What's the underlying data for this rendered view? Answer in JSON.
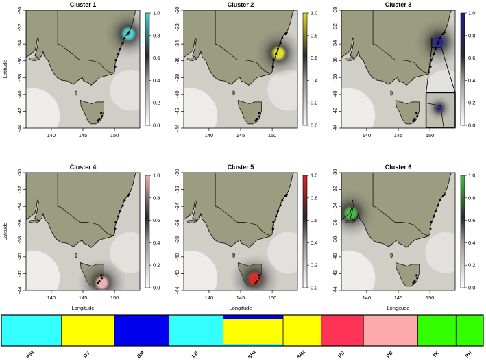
{
  "chart_data": {
    "type": "heatmap",
    "xlabel": "Longitude",
    "ylabel": "Latitude",
    "xlim": [
      136,
      154
    ],
    "ylim": [
      -44,
      -30
    ],
    "xticks": [
      140,
      145,
      150
    ],
    "yticks": [
      -30,
      -32,
      -34,
      -36,
      -38,
      -40,
      -42,
      -44
    ],
    "colorbar_ticks": [
      0.0,
      0.2,
      0.4,
      0.6,
      0.8,
      1.0
    ],
    "colorbar_range": [
      0,
      1
    ],
    "panels": [
      {
        "title": "Cluster 1",
        "color": "#3fd0d0",
        "peak": {
          "lon": 152.2,
          "lat": -32.8,
          "value": 1.0
        }
      },
      {
        "title": "Cluster 2",
        "color": "#e6e020",
        "peak": {
          "lon": 151.0,
          "lat": -35.1,
          "value": 1.0
        }
      },
      {
        "title": "Cluster 3",
        "color": "#1c1c8c",
        "peak": {
          "lon": 151.4,
          "lat": -33.8,
          "value": 1.0
        },
        "inset": true
      },
      {
        "title": "Cluster 4",
        "color": "#f0b2b2",
        "peak": {
          "lon": 148.0,
          "lat": -43.1,
          "value": 1.0
        }
      },
      {
        "title": "Cluster 5",
        "color": "#e02020",
        "peak": {
          "lon": 147.2,
          "lat": -42.6,
          "value": 1.0
        }
      },
      {
        "title": "Cluster 6",
        "color": "#40c040",
        "peak": {
          "lon": 137.5,
          "lat": -34.8,
          "value": 1.0
        }
      }
    ],
    "structure_bar": {
      "populations": [
        "PS1",
        "DY",
        "BM",
        "LB",
        "SH1",
        "SH2",
        "PS",
        "PB",
        "TK",
        "PH"
      ],
      "cluster_colors": [
        "#33ffff",
        "#ffff00",
        "#0000ee",
        "#33ffff",
        "#ffff00",
        "#ffff00",
        "#ff3355",
        "#ffaaaa",
        "#33ff00",
        "#33ff00"
      ]
    }
  }
}
